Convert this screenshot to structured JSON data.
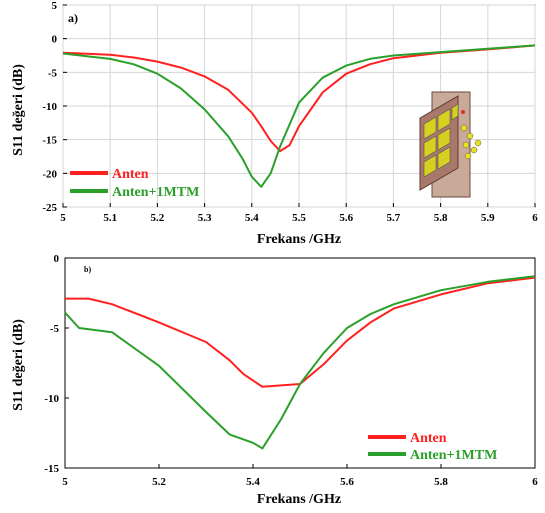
{
  "chart_data": [
    {
      "type": "line",
      "panel_label": "a)",
      "xlabel": "Frekans /GHz",
      "ylabel": "S11 değeri (dB)",
      "xlim": [
        5,
        6
      ],
      "ylim": [
        -25,
        5
      ],
      "xticks": [
        "5",
        "5.1",
        "5.2",
        "5.3",
        "5.4",
        "5.5",
        "5.6",
        "5.7",
        "5.8",
        "5.9",
        "6"
      ],
      "yticks": [
        "5",
        "0",
        "-5",
        "-10",
        "-15",
        "-20",
        "-25"
      ],
      "legend_position": "bottom-left",
      "grid": true,
      "series": [
        {
          "name": "Anten",
          "color": "#ff2020",
          "x": [
            5.0,
            5.1,
            5.15,
            5.2,
            5.25,
            5.3,
            5.35,
            5.4,
            5.42,
            5.44,
            5.46,
            5.48,
            5.5,
            5.55,
            5.6,
            5.65,
            5.7,
            5.8,
            5.9,
            6.0
          ],
          "y": [
            -2.1,
            -2.4,
            -2.8,
            -3.4,
            -4.3,
            -5.6,
            -7.6,
            -11.0,
            -13.0,
            -15.2,
            -16.7,
            -15.8,
            -13.0,
            -8.0,
            -5.2,
            -3.8,
            -2.9,
            -2.1,
            -1.6,
            -1.0
          ]
        },
        {
          "name": "Anten+1MTM",
          "color": "#2aa02a",
          "x": [
            5.0,
            5.1,
            5.15,
            5.2,
            5.25,
            5.3,
            5.35,
            5.38,
            5.4,
            5.42,
            5.44,
            5.46,
            5.5,
            5.55,
            5.6,
            5.65,
            5.7,
            5.8,
            5.9,
            6.0
          ],
          "y": [
            -2.2,
            -3.0,
            -3.8,
            -5.2,
            -7.4,
            -10.5,
            -14.5,
            -17.8,
            -20.5,
            -22.0,
            -20.0,
            -16.0,
            -9.5,
            -5.8,
            -4.0,
            -3.0,
            -2.5,
            -2.0,
            -1.5,
            -1.0
          ]
        }
      ]
    },
    {
      "type": "line",
      "panel_label": "b)",
      "xlabel": "Frekans /GHz",
      "ylabel": "S11 değeri (dB)",
      "xlim": [
        5,
        6
      ],
      "ylim": [
        -15,
        0
      ],
      "xticks": [
        "5",
        "5.2",
        "5.4",
        "5.6",
        "5.8",
        "6"
      ],
      "yticks": [
        "0",
        "-5",
        "-10",
        "-15"
      ],
      "legend_position": "bottom-right",
      "grid": false,
      "series": [
        {
          "name": "Anten",
          "color": "#ff2020",
          "x": [
            5.0,
            5.05,
            5.1,
            5.2,
            5.3,
            5.35,
            5.38,
            5.42,
            5.46,
            5.5,
            5.55,
            5.6,
            5.65,
            5.7,
            5.8,
            5.9,
            6.0
          ],
          "y": [
            -2.9,
            -2.9,
            -3.3,
            -4.6,
            -6.0,
            -7.3,
            -8.3,
            -9.2,
            -9.1,
            -9.0,
            -7.6,
            -5.9,
            -4.6,
            -3.6,
            -2.6,
            -1.8,
            -1.4
          ]
        },
        {
          "name": "Anten+1MTM",
          "color": "#2aa02a",
          "x": [
            5.0,
            5.03,
            5.1,
            5.2,
            5.3,
            5.35,
            5.4,
            5.42,
            5.46,
            5.5,
            5.55,
            5.6,
            5.65,
            5.7,
            5.8,
            5.9,
            6.0
          ],
          "y": [
            -3.9,
            -5.0,
            -5.3,
            -7.7,
            -11.0,
            -12.6,
            -13.2,
            -13.6,
            -11.5,
            -9.0,
            -6.8,
            -5.0,
            -4.0,
            -3.3,
            -2.3,
            -1.7,
            -1.3
          ]
        }
      ]
    }
  ]
}
